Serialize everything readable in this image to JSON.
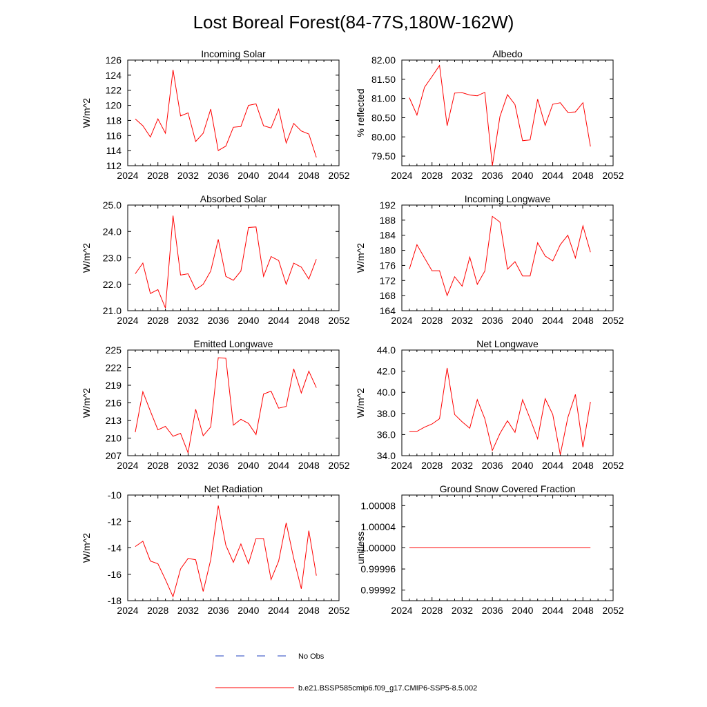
{
  "figure_title": "Lost Boreal Forest(84-77S,180W-162W)",
  "legend": {
    "obs_label": "No Obs",
    "model_label": "b.e21.BSSP585cmip6.f09_g17.CMIP6-SSP5-8.5.002",
    "obs_color": "#1f3fbf",
    "model_color": "#ff0000"
  },
  "chart_data": [
    {
      "type": "line",
      "title": "Incoming Solar",
      "ylabel": "W/m^2",
      "xlim": [
        2024,
        2052
      ],
      "ylim": [
        112,
        126
      ],
      "x_ticks": [
        "2024",
        "2028",
        "2032",
        "2036",
        "2040",
        "2044",
        "2048",
        "2052"
      ],
      "y_ticks": [
        "112",
        "114",
        "116",
        "118",
        "120",
        "122",
        "124",
        "126"
      ],
      "x": [
        2025,
        2026,
        2027,
        2028,
        2029,
        2030,
        2031,
        2032,
        2033,
        2034,
        2035,
        2036,
        2037,
        2038,
        2039,
        2040,
        2041,
        2042,
        2043,
        2044,
        2045,
        2046,
        2047,
        2048,
        2049
      ],
      "values": [
        118.2,
        117.3,
        115.8,
        118.2,
        116.3,
        124.7,
        118.6,
        119.0,
        115.2,
        116.3,
        119.5,
        114.0,
        114.6,
        117.1,
        117.2,
        120.0,
        120.2,
        117.3,
        117.0,
        119.5,
        115.0,
        117.6,
        116.6,
        116.2,
        113.1
      ]
    },
    {
      "type": "line",
      "title": "Albedo",
      "ylabel": "% reflected",
      "xlim": [
        2024,
        2052
      ],
      "ylim": [
        79.25,
        82.0
      ],
      "x_ticks": [
        "2024",
        "2028",
        "2032",
        "2036",
        "2040",
        "2044",
        "2048",
        "2052"
      ],
      "y_ticks": [
        "79.50",
        "80.00",
        "80.50",
        "81.00",
        "81.50",
        "82.00"
      ],
      "x": [
        2025,
        2026,
        2027,
        2028,
        2029,
        2030,
        2031,
        2032,
        2033,
        2034,
        2035,
        2036,
        2037,
        2038,
        2039,
        2040,
        2041,
        2042,
        2043,
        2044,
        2045,
        2046,
        2047,
        2048,
        2049
      ],
      "values": [
        81.02,
        80.57,
        81.29,
        81.57,
        81.86,
        80.29,
        81.14,
        81.15,
        81.09,
        81.07,
        81.16,
        79.25,
        80.53,
        81.1,
        80.84,
        79.9,
        79.92,
        80.98,
        80.3,
        80.85,
        80.89,
        80.64,
        80.65,
        80.89,
        79.75
      ]
    },
    {
      "type": "line",
      "title": "Absorbed Solar",
      "ylabel": "W/m^2",
      "xlim": [
        2024,
        2052
      ],
      "ylim": [
        21.0,
        25.0
      ],
      "x_ticks": [
        "2024",
        "2028",
        "2032",
        "2036",
        "2040",
        "2044",
        "2048",
        "2052"
      ],
      "y_ticks": [
        "21.0",
        "22.0",
        "23.0",
        "24.0",
        "25.0"
      ],
      "x": [
        2025,
        2026,
        2027,
        2028,
        2029,
        2030,
        2031,
        2032,
        2033,
        2034,
        2035,
        2036,
        2037,
        2038,
        2039,
        2040,
        2041,
        2042,
        2043,
        2044,
        2045,
        2046,
        2047,
        2048,
        2049
      ],
      "values": [
        22.4,
        22.8,
        21.65,
        21.8,
        21.1,
        24.6,
        22.35,
        22.4,
        21.8,
        22.0,
        22.5,
        23.7,
        22.3,
        22.15,
        22.5,
        24.15,
        24.17,
        22.3,
        23.05,
        22.9,
        22.0,
        22.8,
        22.65,
        22.2,
        22.95
      ]
    },
    {
      "type": "line",
      "title": "Incoming Longwave",
      "ylabel": "W/m^2",
      "xlim": [
        2024,
        2052
      ],
      "ylim": [
        164,
        192
      ],
      "x_ticks": [
        "2024",
        "2028",
        "2032",
        "2036",
        "2040",
        "2044",
        "2048",
        "2052"
      ],
      "y_ticks": [
        "164",
        "168",
        "172",
        "176",
        "180",
        "184",
        "188",
        "192"
      ],
      "x": [
        2025,
        2026,
        2027,
        2028,
        2029,
        2030,
        2031,
        2032,
        2033,
        2034,
        2035,
        2036,
        2037,
        2038,
        2039,
        2040,
        2041,
        2042,
        2043,
        2044,
        2045,
        2046,
        2047,
        2048,
        2049
      ],
      "values": [
        175.0,
        181.5,
        178.0,
        174.6,
        174.6,
        168.0,
        173.0,
        170.5,
        178.2,
        171.0,
        174.5,
        189.0,
        187.5,
        175.0,
        177.0,
        173.2,
        173.2,
        182.0,
        178.5,
        177.2,
        181.5,
        184.0,
        178.0,
        186.5,
        179.5
      ]
    },
    {
      "type": "line",
      "title": "Emitted Longwave",
      "ylabel": "W/m^2",
      "xlim": [
        2024,
        2052
      ],
      "ylim": [
        207,
        225
      ],
      "x_ticks": [
        "2024",
        "2028",
        "2032",
        "2036",
        "2040",
        "2044",
        "2048",
        "2052"
      ],
      "y_ticks": [
        "207",
        "210",
        "213",
        "216",
        "219",
        "222",
        "225"
      ],
      "x": [
        2025,
        2026,
        2027,
        2028,
        2029,
        2030,
        2031,
        2032,
        2033,
        2034,
        2035,
        2036,
        2037,
        2038,
        2039,
        2040,
        2041,
        2042,
        2043,
        2044,
        2045,
        2046,
        2047,
        2048,
        2049
      ],
      "values": [
        211.0,
        217.9,
        214.6,
        211.4,
        212.0,
        210.3,
        210.8,
        207.5,
        214.9,
        210.4,
        211.9,
        223.7,
        223.6,
        212.2,
        213.2,
        212.5,
        210.6,
        217.5,
        218.0,
        215.1,
        215.4,
        221.8,
        217.7,
        221.4,
        218.6
      ]
    },
    {
      "type": "line",
      "title": "Net Longwave",
      "ylabel": "W/m^2",
      "xlim": [
        2024,
        2052
      ],
      "ylim": [
        34.0,
        44.0
      ],
      "x_ticks": [
        "2024",
        "2028",
        "2032",
        "2036",
        "2040",
        "2044",
        "2048",
        "2052"
      ],
      "y_ticks": [
        "34.0",
        "36.0",
        "38.0",
        "40.0",
        "42.0",
        "44.0"
      ],
      "x": [
        2025,
        2026,
        2027,
        2028,
        2029,
        2030,
        2031,
        2032,
        2033,
        2034,
        2035,
        2036,
        2037,
        2038,
        2039,
        2040,
        2041,
        2042,
        2043,
        2044,
        2045,
        2046,
        2047,
        2048,
        2049
      ],
      "values": [
        36.3,
        36.3,
        36.7,
        37.0,
        37.5,
        42.3,
        37.9,
        37.2,
        36.6,
        39.3,
        37.5,
        34.5,
        36.1,
        37.3,
        36.2,
        39.3,
        37.5,
        35.6,
        39.4,
        37.9,
        34.1,
        37.6,
        39.8,
        34.8,
        39.1
      ]
    },
    {
      "type": "line",
      "title": "Net Radiation",
      "ylabel": "W/m^2",
      "xlim": [
        2024,
        2052
      ],
      "ylim": [
        -18,
        -10
      ],
      "x_ticks": [
        "2024",
        "2028",
        "2032",
        "2036",
        "2040",
        "2044",
        "2048",
        "2052"
      ],
      "y_ticks": [
        "-18",
        "-16",
        "-14",
        "-12",
        "-10"
      ],
      "x": [
        2025,
        2026,
        2027,
        2028,
        2029,
        2030,
        2031,
        2032,
        2033,
        2034,
        2035,
        2036,
        2037,
        2038,
        2039,
        2040,
        2041,
        2042,
        2043,
        2044,
        2045,
        2046,
        2047,
        2048,
        2049
      ],
      "values": [
        -13.9,
        -13.5,
        -15.0,
        -15.2,
        -16.4,
        -17.7,
        -15.6,
        -14.8,
        -14.9,
        -17.3,
        -14.9,
        -10.8,
        -13.8,
        -15.1,
        -13.7,
        -15.2,
        -13.3,
        -13.3,
        -16.4,
        -15.0,
        -12.1,
        -14.8,
        -17.1,
        -12.7,
        -16.1
      ]
    },
    {
      "type": "line",
      "title": "Ground Snow Covered Fraction",
      "ylabel": "unitless",
      "xlim": [
        2024,
        2052
      ],
      "ylim": [
        0.9999,
        1.0001
      ],
      "x_ticks": [
        "2024",
        "2028",
        "2032",
        "2036",
        "2040",
        "2044",
        "2048",
        "2052"
      ],
      "y_ticks": [
        "0.99992",
        "0.99996",
        "1.00000",
        "1.00004",
        "1.00008"
      ],
      "x": [
        2025,
        2049
      ],
      "values": [
        1.0,
        1.0
      ]
    }
  ]
}
